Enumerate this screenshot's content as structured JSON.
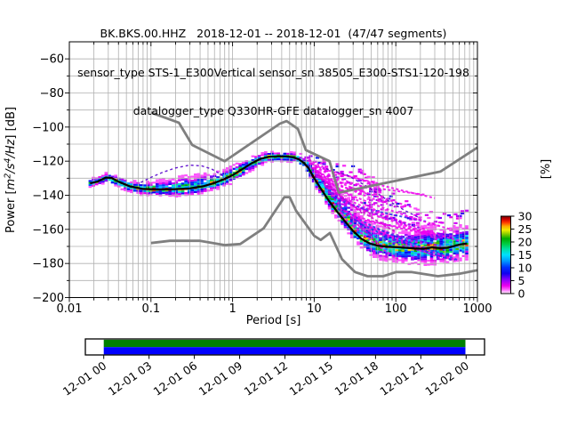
{
  "title": {
    "line1": "BK.BKS.00.HHZ   2018-12-01 -- 2018-12-01  (47/47 segments)",
    "line2": "sensor_type STS-1_E300Vertical sensor_sn 38505_E300-STS1-120-198",
    "line3": "datalogger_type Q330HR-GFE datalogger_sn 4007"
  },
  "chart_data": {
    "type": "heatmap",
    "title": "BK.BKS.00.HHZ 2018-12-01 -- 2018-12-01 (47/47 segments)",
    "xlabel": "Period [s]",
    "ylabel_plain": "Power [m²/s⁴/Hz] [dB]",
    "ylabel_parts": [
      [
        "Power [",
        "normal"
      ],
      [
        "m",
        "italic"
      ],
      [
        "2",
        "sup"
      ],
      [
        "/s",
        "italic"
      ],
      [
        "4",
        "sup"
      ],
      [
        "/Hz",
        "italic"
      ],
      [
        "] [dB]",
        "normal"
      ]
    ],
    "xscale": "log",
    "xlim": [
      0.01,
      1000
    ],
    "ylim": [
      -200,
      -50
    ],
    "x_tick_labels": [
      "0.01",
      "0.1",
      "1",
      "10",
      "100",
      "1000"
    ],
    "y_tick_values": [
      -60,
      -80,
      -100,
      -120,
      -140,
      -160,
      -180,
      -200
    ],
    "grid": true,
    "grid_color": "#b0b0b0",
    "colorbar": {
      "label": "[%]",
      "tick_values": [
        0,
        5,
        10,
        15,
        20,
        25,
        30
      ],
      "max": 30,
      "gradient": [
        [
          0,
          "#ffffff"
        ],
        [
          0.05,
          "#ff66ff"
        ],
        [
          0.1,
          "#ee00ee"
        ],
        [
          0.18,
          "#8800ff"
        ],
        [
          0.26,
          "#1100ee"
        ],
        [
          0.34,
          "#0033ff"
        ],
        [
          0.42,
          "#0099ff"
        ],
        [
          0.5,
          "#00e0ff"
        ],
        [
          0.57,
          "#00e0aa"
        ],
        [
          0.64,
          "#00cc44"
        ],
        [
          0.71,
          "#00aa00"
        ],
        [
          0.77,
          "#88cc00"
        ],
        [
          0.82,
          "#eeee00"
        ],
        [
          0.87,
          "#ffaa00"
        ],
        [
          0.92,
          "#ff3300"
        ],
        [
          0.96,
          "#cc0000"
        ],
        [
          1,
          "#770000"
        ]
      ]
    },
    "noise_models": {
      "color": "#7f7f7f",
      "high_noise_model": [
        [
          0.1,
          -91.5
        ],
        [
          0.22,
          -97.4
        ],
        [
          0.32,
          -110.5
        ],
        [
          0.8,
          -120
        ],
        [
          3.8,
          -98
        ],
        [
          4.6,
          -96.5
        ],
        [
          6.3,
          -101
        ],
        [
          7.9,
          -113.5
        ],
        [
          15.4,
          -120
        ],
        [
          20,
          -138.5
        ],
        [
          354.8,
          -126
        ],
        [
          1000,
          -112
        ]
      ],
      "low_noise_model": [
        [
          0.1,
          -168
        ],
        [
          0.17,
          -166.7
        ],
        [
          0.4,
          -166.7
        ],
        [
          0.8,
          -169.2
        ],
        [
          1.24,
          -168.6
        ],
        [
          2.4,
          -159.4
        ],
        [
          4.3,
          -141.1
        ],
        [
          5,
          -141.1
        ],
        [
          6,
          -149
        ],
        [
          10,
          -163.8
        ],
        [
          12,
          -166.2
        ],
        [
          15.6,
          -162.1
        ],
        [
          21.9,
          -177.5
        ],
        [
          31.6,
          -185
        ],
        [
          45,
          -187.5
        ],
        [
          70,
          -187.5
        ],
        [
          101,
          -185
        ],
        [
          154,
          -185
        ],
        [
          328,
          -187.5
        ],
        [
          600,
          -186
        ],
        [
          1000,
          -184
        ]
      ]
    },
    "mode_psd": [
      [
        0.018,
        -133
      ],
      [
        0.022,
        -132
      ],
      [
        0.028,
        -129.6
      ],
      [
        0.033,
        -129.9
      ],
      [
        0.04,
        -132
      ],
      [
        0.055,
        -134.8
      ],
      [
        0.08,
        -136.3
      ],
      [
        0.12,
        -136.6
      ],
      [
        0.2,
        -136.4
      ],
      [
        0.3,
        -136
      ],
      [
        0.45,
        -134.6
      ],
      [
        0.6,
        -132.8
      ],
      [
        0.8,
        -130.4
      ],
      [
        1,
        -128.2
      ],
      [
        1.3,
        -124.8
      ],
      [
        1.7,
        -121.3
      ],
      [
        2.2,
        -118.6
      ],
      [
        2.8,
        -117.4
      ],
      [
        3.5,
        -117.2
      ],
      [
        4.5,
        -117.2
      ],
      [
        5.5,
        -117.7
      ],
      [
        6.5,
        -118.9
      ],
      [
        7.5,
        -121
      ],
      [
        8.5,
        -124
      ],
      [
        10,
        -130
      ],
      [
        12,
        -136
      ],
      [
        15,
        -143
      ],
      [
        19,
        -149.5
      ],
      [
        24,
        -155.5
      ],
      [
        30,
        -161
      ],
      [
        38,
        -165.5
      ],
      [
        48,
        -168.3
      ],
      [
        60,
        -169.6
      ],
      [
        80,
        -170.2
      ],
      [
        100,
        -170.4
      ],
      [
        130,
        -170.8
      ],
      [
        170,
        -171.2
      ],
      [
        220,
        -171.4
      ],
      [
        280,
        -170.6
      ],
      [
        350,
        -171
      ],
      [
        430,
        -170.8
      ],
      [
        520,
        -169.8
      ],
      [
        620,
        -168.8
      ],
      [
        740,
        -168.3
      ]
    ],
    "density_band": [
      [
        0.018,
        -135.5,
        -130.5
      ],
      [
        0.028,
        -133,
        -126.8
      ],
      [
        0.04,
        -136,
        -129
      ],
      [
        0.06,
        -139,
        -131.5
      ],
      [
        0.09,
        -140.5,
        -132
      ],
      [
        0.15,
        -141,
        -130.5
      ],
      [
        0.25,
        -141,
        -128.5
      ],
      [
        0.4,
        -140,
        -127.5
      ],
      [
        0.6,
        -137.5,
        -126.5
      ],
      [
        0.8,
        -135,
        -125
      ],
      [
        1,
        -133,
        -122.5
      ],
      [
        1.4,
        -129,
        -119.5
      ],
      [
        1.9,
        -124.5,
        -116.5
      ],
      [
        2.5,
        -121.5,
        -114.8
      ],
      [
        3.5,
        -120.5,
        -114.3
      ],
      [
        5,
        -120.5,
        -114.6
      ],
      [
        6.5,
        -122,
        -115.3
      ],
      [
        7.5,
        -125,
        -116.5
      ],
      [
        8.5,
        -128.5,
        -118
      ],
      [
        10,
        -134,
        -122
      ],
      [
        12,
        -140,
        -126
      ],
      [
        15,
        -147,
        -130
      ],
      [
        19,
        -154,
        -134
      ],
      [
        24,
        -160,
        -139
      ],
      [
        30,
        -166,
        -145
      ],
      [
        38,
        -171,
        -150
      ],
      [
        48,
        -175.5,
        -155
      ],
      [
        60,
        -177.5,
        -158
      ],
      [
        80,
        -179,
        -159
      ],
      [
        100,
        -180,
        -159.5
      ],
      [
        130,
        -180.5,
        -160
      ],
      [
        170,
        -181,
        -159
      ],
      [
        220,
        -181.5,
        -158
      ],
      [
        280,
        -181,
        -157.5
      ],
      [
        350,
        -180.5,
        -158
      ],
      [
        430,
        -180,
        -158.5
      ],
      [
        520,
        -179,
        -158
      ],
      [
        620,
        -178.5,
        -157.5
      ],
      [
        740,
        -178,
        -157
      ]
    ],
    "sparse_fan": [
      [
        8,
        -119,
        -116.5
      ],
      [
        10,
        -123,
        -117.5
      ],
      [
        13,
        -127,
        -119
      ],
      [
        17,
        -131,
        -120
      ],
      [
        22,
        -135,
        -121
      ],
      [
        30,
        -143,
        -123
      ],
      [
        40,
        -149,
        -126
      ],
      [
        55,
        -154,
        -130
      ],
      [
        75,
        -158,
        -134
      ],
      [
        100,
        -159.5,
        -139
      ],
      [
        140,
        -160,
        -144
      ],
      [
        200,
        -158.5,
        -148
      ],
      [
        280,
        -157.5,
        -150
      ],
      [
        380,
        -157,
        -151
      ],
      [
        520,
        -156.5,
        -150
      ],
      [
        740,
        -156,
        -149
      ]
    ],
    "dashed_curves": [
      [
        [
          0.075,
          -132.5
        ],
        [
          0.1,
          -129.5
        ],
        [
          0.14,
          -126.5
        ],
        [
          0.2,
          -124
        ],
        [
          0.3,
          -122.3
        ],
        [
          0.42,
          -122.8
        ],
        [
          0.55,
          -124.5
        ],
        [
          0.7,
          -127.5
        ],
        [
          0.85,
          -130.2
        ]
      ],
      [
        [
          14,
          -124.5
        ],
        [
          25,
          -128
        ],
        [
          45,
          -135
        ],
        [
          80,
          -143
        ],
        [
          130,
          -149
        ],
        [
          200,
          -153.5
        ]
      ]
    ],
    "availability": {
      "tick_labels": [
        "12-01 00",
        "12-01 03",
        "12-01 06",
        "12-01 09",
        "12-01 12",
        "12-01 15",
        "12-01 18",
        "12-01 21",
        "12-02 00"
      ],
      "coverage_color": "#008000",
      "extent_color": "#0000ff"
    }
  }
}
